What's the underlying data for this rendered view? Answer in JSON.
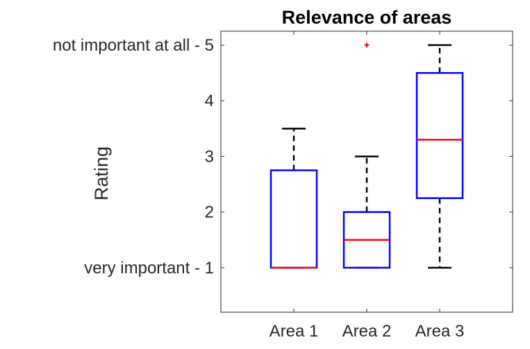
{
  "chart_data": {
    "type": "box",
    "title": "Relevance of areas",
    "xlabel": "",
    "ylabel": "Rating",
    "categories": [
      "Area 1",
      "Area 2",
      "Area 3"
    ],
    "ylim": [
      0.2,
      5.25
    ],
    "yticks": [
      {
        "value": 1,
        "label": "very important - 1"
      },
      {
        "value": 2,
        "label": "2"
      },
      {
        "value": 3,
        "label": "3"
      },
      {
        "value": 4,
        "label": "4"
      },
      {
        "value": 5,
        "label": "not important at all - 5"
      }
    ],
    "boxes": [
      {
        "category": "Area 1",
        "whisker_low": 1,
        "q1": 1,
        "median": 1,
        "q3": 2.75,
        "whisker_high": 3.5,
        "outliers": []
      },
      {
        "category": "Area 2",
        "whisker_low": 1,
        "q1": 1,
        "median": 1.5,
        "q3": 2,
        "whisker_high": 3,
        "outliers": [
          5
        ]
      },
      {
        "category": "Area 3",
        "whisker_low": 1,
        "q1": 2.25,
        "median": 3.3,
        "q3": 4.5,
        "whisker_high": 5,
        "outliers": []
      }
    ],
    "grid": false,
    "colors": {
      "box": "#0000ff",
      "median": "#ff0000",
      "whisker": "#000000",
      "outlier": "#ff0000",
      "axis": "#262626"
    }
  }
}
